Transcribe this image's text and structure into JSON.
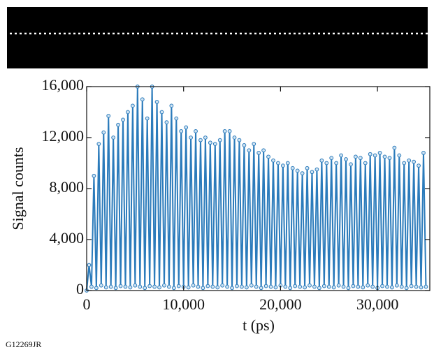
{
  "chart_data": {
    "type": "line",
    "ylabel": "Signal counts",
    "xlabel": "t (ps)",
    "footer": "G12269JR",
    "xlim": [
      0,
      35400
    ],
    "ylim": [
      0,
      16000
    ],
    "xticks": [
      {
        "value": 0,
        "label": "0"
      },
      {
        "value": 10000,
        "label": "10,000"
      },
      {
        "value": 20000,
        "label": "20,000"
      },
      {
        "value": 30000,
        "label": "30,000"
      }
    ],
    "yticks": [
      {
        "value": 0,
        "label": "0"
      },
      {
        "value": 4000,
        "label": "4,000"
      },
      {
        "value": 8000,
        "label": "8,000"
      },
      {
        "value": 12000,
        "label": "12,000"
      },
      {
        "value": 16000,
        "label": "16,000"
      }
    ],
    "x": [
      0,
      250,
      500,
      750,
      1000,
      1250,
      1500,
      1750,
      2000,
      2250,
      2500,
      2750,
      3000,
      3250,
      3500,
      3750,
      4000,
      4250,
      4500,
      4750,
      5000,
      5250,
      5500,
      5750,
      6000,
      6250,
      6500,
      6750,
      7000,
      7250,
      7500,
      7750,
      8000,
      8250,
      8500,
      8750,
      9000,
      9250,
      9500,
      9750,
      10000,
      10250,
      10500,
      10750,
      11000,
      11250,
      11500,
      11750,
      12000,
      12250,
      12500,
      12750,
      13000,
      13250,
      13500,
      13750,
      14000,
      14250,
      14500,
      14750,
      15000,
      15250,
      15500,
      15750,
      16000,
      16250,
      16500,
      16750,
      17000,
      17250,
      17500,
      17750,
      18000,
      18250,
      18500,
      18750,
      19000,
      19250,
      19500,
      19750,
      20000,
      20250,
      20500,
      20750,
      21000,
      21250,
      21500,
      21750,
      22000,
      22250,
      22500,
      22750,
      23000,
      23250,
      23500,
      23750,
      24000,
      24250,
      24500,
      24750,
      25000,
      25250,
      25500,
      25750,
      26000,
      26250,
      26500,
      26750,
      27000,
      27250,
      27500,
      27750,
      28000,
      28250,
      28500,
      28750,
      29000,
      29250,
      29500,
      29750,
      30000,
      30250,
      30500,
      30750,
      31000,
      31250,
      31500,
      31750,
      32000,
      32250,
      32500,
      32750,
      33000,
      33250,
      33500,
      33750,
      34000,
      34250,
      34500,
      34750,
      35000
    ],
    "series": [
      {
        "color": "#2b7bbb",
        "values": [
          0,
          2000,
          300,
          9000,
          200,
          11500,
          400,
          12400,
          250,
          13700,
          300,
          12000,
          200,
          13000,
          350,
          13400,
          300,
          14000,
          250,
          14500,
          400,
          16000,
          300,
          15000,
          200,
          13500,
          350,
          16000,
          300,
          14800,
          250,
          14000,
          400,
          13200,
          300,
          14500,
          200,
          13500,
          350,
          12500,
          300,
          12800,
          250,
          12000,
          400,
          12500,
          300,
          11800,
          200,
          12000,
          350,
          11600,
          300,
          11500,
          250,
          11800,
          400,
          12500,
          300,
          12500,
          200,
          12000,
          350,
          11800,
          300,
          11400,
          250,
          11000,
          400,
          11500,
          300,
          10800,
          200,
          11000,
          350,
          10500,
          300,
          10200,
          250,
          10000,
          400,
          9800,
          300,
          10000,
          200,
          9600,
          350,
          9400,
          300,
          9200,
          250,
          9600,
          400,
          9300,
          300,
          9500,
          200,
          10200,
          350,
          10000,
          300,
          10400,
          250,
          10000,
          400,
          10600,
          300,
          10300,
          200,
          9900,
          350,
          10500,
          300,
          10400,
          250,
          10000,
          400,
          10700,
          300,
          10600,
          200,
          10800,
          350,
          10500,
          300,
          10400,
          250,
          11200,
          400,
          10600,
          300,
          10000,
          200,
          10200,
          350,
          10100,
          300,
          9800,
          250,
          10800,
          300
        ]
      }
    ]
  }
}
